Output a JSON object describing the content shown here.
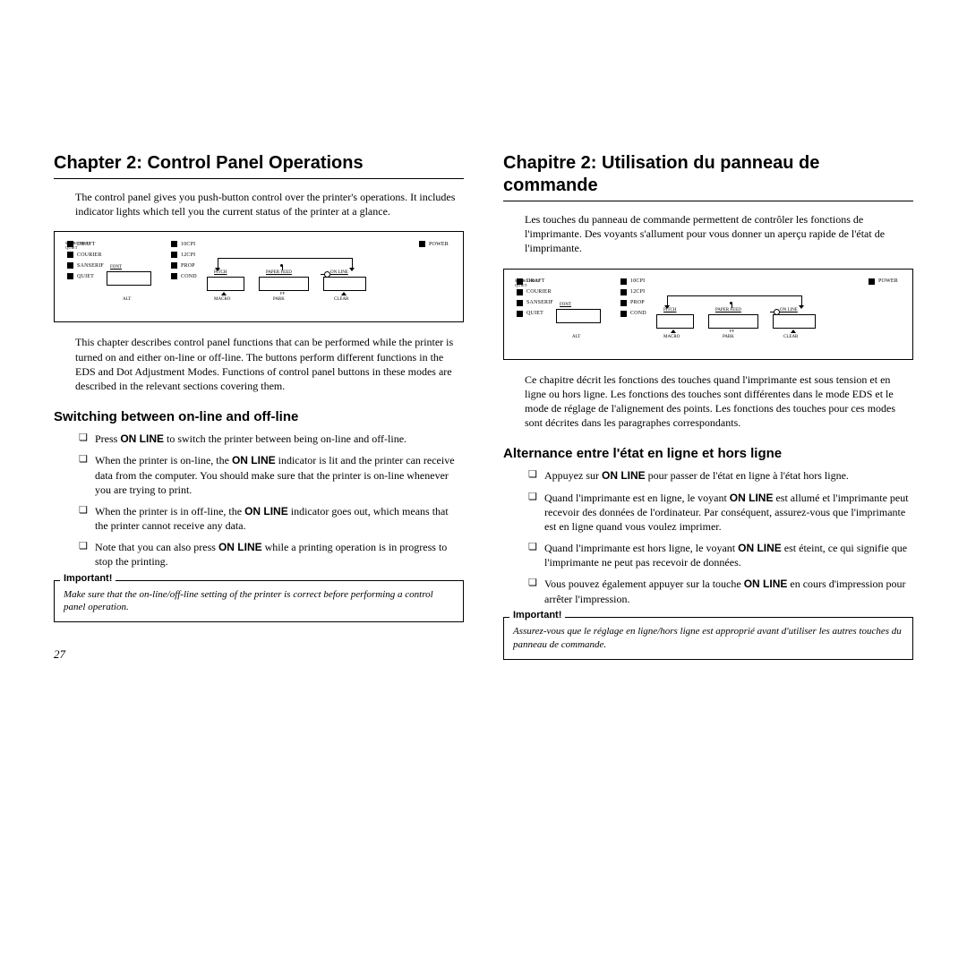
{
  "left": {
    "chapter": "Chapter 2:  Control Panel Operations",
    "intro": "The control panel gives you push-button control over the printer's operations. It includes indicator lights which tell you the current status of the printer at a glance.",
    "after_diagram": "This chapter describes control panel functions that can be performed while the printer is turned on and either on-line or off-line. The buttons perform different functions in the EDS and Dot Adjustment Modes. Functions of control panel buttons in these modes are described in the relevant sections covering them.",
    "section": "Switching between on-line and off-line",
    "bullets": [
      {
        "pre": "Press ",
        "bold": "ON LINE",
        "post": " to switch the printer between being on-line and off-line."
      },
      {
        "pre": "When the printer is on-line, the ",
        "bold": "ON LINE",
        "post": " indicator is lit and the printer can receive data from the computer. You should make sure that the printer is on-line whenever you are trying to print."
      },
      {
        "pre": "When the printer is in off-line, the ",
        "bold": "ON LINE",
        "post": " indicator goes out, which means that the printer cannot receive any data."
      },
      {
        "pre": "Note that you can also press ",
        "bold": "ON LINE",
        "post": " while a printing operation is in progress to stop the printing."
      }
    ],
    "important_label": "Important!",
    "important_text": "Make sure that the on-line/off-line setting of the printer is correct before performing a control panel operation.",
    "page_num": "27"
  },
  "right": {
    "chapter": "Chapitre 2:  Utilisation du panneau de commande",
    "intro": "Les touches du panneau de commande permettent de contrôler les fonctions de l'imprimante. Des voyants s'allument pour vous donner un aperçu rapide de l'état de l'imprimante.",
    "after_diagram": "Ce chapitre décrit les fonctions des touches quand l'imprimante est sous tension et en ligne ou hors ligne. Les fonctions des touches sont différentes dans le mode EDS et le mode de réglage de l'alignement des points. Les fonctions des touches pour ces modes sont décrites dans les paragraphes correspondants.",
    "section": "Alternance entre l'état en ligne et hors ligne",
    "bullets": [
      {
        "pre": "Appuyez sur ",
        "bold": "ON LINE",
        "post": " pour passer de l'état en ligne à l'état hors ligne."
      },
      {
        "pre": "Quand l'imprimante est en ligne, le voyant ",
        "bold": "ON LINE",
        "post": " est allumé et l'imprimante peut recevoir des données de l'ordinateur. Par conséquent, assurez-vous que l'imprimante est en ligne quand vous voulez imprimer."
      },
      {
        "pre": "Quand l'imprimante est hors ligne, le voyant ",
        "bold": "ON LINE",
        "post": " est éteint, ce qui signifie que l'imprimante ne peut pas recevoir de données."
      },
      {
        "pre": "Vous pouvez également appuyer sur la touche ",
        "bold": "ON LINE",
        "post": " en cours d'impression pour arrêter l'impression."
      }
    ],
    "important_label": "Important!",
    "important_text": "Assurez-vous que le réglage en ligne/hors ligne est approprié avant d'utiliser les autres touches du panneau de commande."
  },
  "panel": {
    "col_a": [
      "DRAFT",
      "COURIER",
      "SANSERIF",
      "QUIET"
    ],
    "col_b": [
      "10CPI",
      "12CPI",
      "PROP",
      "COND"
    ],
    "font": "FONT",
    "power": "POWER",
    "pitch": "PITCH",
    "paper": "PAPER FEED",
    "online": "ON LINE",
    "quiet": "QUIET",
    "micro": "MICRO FEED",
    "alt": "ALT",
    "macro": "MACRO",
    "park": "PARK",
    "ff": "FF",
    "clear": "CLEAR"
  }
}
